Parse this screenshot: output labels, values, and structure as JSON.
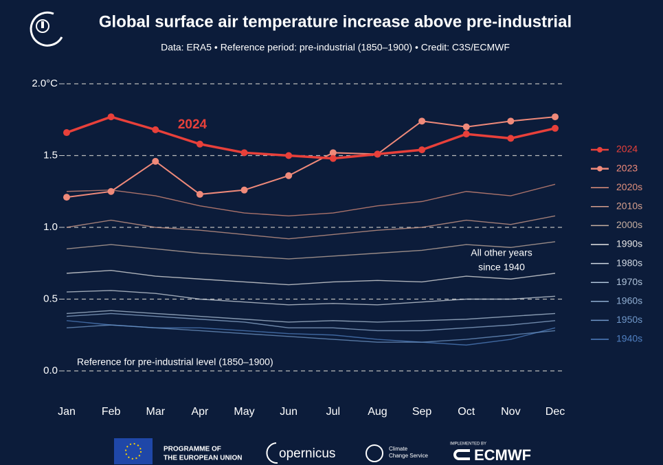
{
  "chart_data": {
    "type": "line",
    "title": "Global surface air temperature increase above pre-industrial",
    "subtitle": "Data: ERA5 • Reference period: pre-industrial (1850–1900) • Credit: C3S/ECMWF",
    "categories": [
      "Jan",
      "Feb",
      "Mar",
      "Apr",
      "May",
      "Jun",
      "Jul",
      "Aug",
      "Sep",
      "Oct",
      "Nov",
      "Dec"
    ],
    "ylim": [
      0,
      2
    ],
    "yticks": [
      {
        "value": 0,
        "label": "0.0"
      },
      0.5,
      {
        "value": 1,
        "label": "1.0"
      },
      1.5,
      {
        "value": 2,
        "label": "2.0°C"
      }
    ],
    "grid": true,
    "legend": "right",
    "annotations": {
      "highlight": "2024",
      "others": [
        "All other years",
        "since 1940"
      ],
      "reference": "Reference for pre-industrial level (1850–1900)"
    },
    "series": [
      {
        "name": "2024",
        "color": "#e8403a",
        "markers": true,
        "values": [
          1.66,
          1.77,
          1.68,
          1.58,
          1.52,
          1.5,
          1.48,
          1.51,
          1.54,
          1.65,
          1.62,
          1.69
        ]
      },
      {
        "name": "2023",
        "color": "#f08a7a",
        "markers": true,
        "values": [
          1.21,
          1.25,
          1.46,
          1.23,
          1.26,
          1.36,
          1.52,
          1.51,
          1.74,
          1.7,
          1.74,
          1.77
        ]
      },
      {
        "name": "2020s",
        "color": "#e0907c",
        "values": [
          1.25,
          1.26,
          1.22,
          1.15,
          1.1,
          1.08,
          1.1,
          1.15,
          1.18,
          1.25,
          1.22,
          1.3
        ]
      },
      {
        "name": "2010s",
        "color": "#d6a08e",
        "values": [
          1.0,
          1.05,
          1.0,
          0.98,
          0.95,
          0.92,
          0.95,
          0.98,
          1.0,
          1.05,
          1.02,
          1.08
        ]
      },
      {
        "name": "2000s",
        "color": "#c8b0a2",
        "values": [
          0.85,
          0.88,
          0.85,
          0.82,
          0.8,
          0.78,
          0.8,
          0.82,
          0.84,
          0.88,
          0.86,
          0.9
        ]
      },
      {
        "name": "1990s",
        "color": "#e6e6e6",
        "values": [
          0.68,
          0.7,
          0.66,
          0.64,
          0.62,
          0.6,
          0.62,
          0.63,
          0.62,
          0.66,
          0.64,
          0.68
        ]
      },
      {
        "name": "1980s",
        "color": "#d0d8e2",
        "values": [
          0.55,
          0.56,
          0.54,
          0.5,
          0.48,
          0.46,
          0.47,
          0.46,
          0.48,
          0.5,
          0.5,
          0.52
        ]
      },
      {
        "name": "1970s",
        "color": "#b0c4da",
        "values": [
          0.4,
          0.42,
          0.4,
          0.38,
          0.36,
          0.34,
          0.35,
          0.34,
          0.35,
          0.36,
          0.38,
          0.4
        ]
      },
      {
        "name": "1960s",
        "color": "#90aed2",
        "values": [
          0.38,
          0.4,
          0.38,
          0.36,
          0.34,
          0.3,
          0.3,
          0.28,
          0.28,
          0.3,
          0.32,
          0.35
        ]
      },
      {
        "name": "1950s",
        "color": "#7098ca",
        "values": [
          0.3,
          0.32,
          0.3,
          0.28,
          0.26,
          0.24,
          0.22,
          0.2,
          0.2,
          0.22,
          0.25,
          0.28
        ]
      },
      {
        "name": "1940s",
        "color": "#5080c2",
        "values": [
          0.35,
          0.32,
          0.3,
          0.3,
          0.28,
          0.26,
          0.25,
          0.22,
          0.2,
          0.18,
          0.22,
          0.3
        ]
      }
    ]
  },
  "footer": {
    "eu": [
      "PROGRAMME OF",
      "THE EUROPEAN UNION"
    ],
    "copernicus": "opernicus",
    "c3s": [
      "Climate",
      "Change Service"
    ],
    "implemented": "IMPLEMENTED BY",
    "ecmwf": "ECMWF"
  }
}
